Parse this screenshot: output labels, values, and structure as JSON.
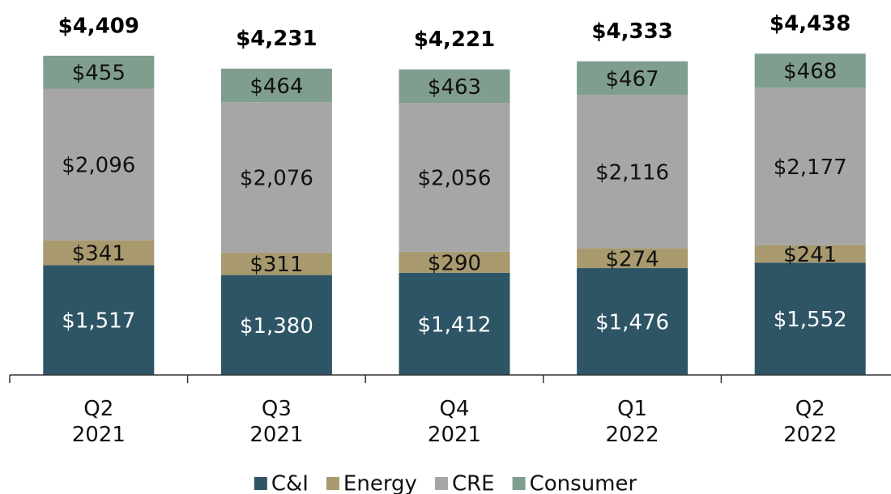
{
  "chart_data": {
    "type": "stacked_bar",
    "categories": [
      "Q2 2021",
      "Q3 2021",
      "Q4 2021",
      "Q1 2022",
      "Q2 2022"
    ],
    "series": [
      {
        "name": "C&I",
        "color": "#2e5566",
        "values": [
          1517,
          1380,
          1412,
          1476,
          1552
        ],
        "value_labels": [
          "$1,517",
          "$1,380",
          "$1,412",
          "$1,476",
          "$1,552"
        ]
      },
      {
        "name": "Energy",
        "color": "#a89a6e",
        "values": [
          341,
          311,
          290,
          274,
          241
        ],
        "value_labels": [
          "$341",
          "$311",
          "$290",
          "$274",
          "$241"
        ]
      },
      {
        "name": "CRE",
        "color": "#a6a6a6",
        "values": [
          2096,
          2076,
          2056,
          2116,
          2177
        ],
        "value_labels": [
          "$2,096",
          "$2,076",
          "$2,056",
          "$2,116",
          "$2,177"
        ]
      },
      {
        "name": "Consumer",
        "color": "#7f9e8e",
        "values": [
          455,
          464,
          463,
          467,
          468
        ],
        "value_labels": [
          "$455",
          "$464",
          "$463",
          "$467",
          "$468"
        ]
      }
    ],
    "totals": [
      4409,
      4231,
      4221,
      4333,
      4438
    ],
    "total_labels": [
      "$4,409",
      "$4,231",
      "$4,221",
      "$4,333",
      "$4,438"
    ],
    "ylim": [
      0,
      5000
    ],
    "legend": "bottom"
  }
}
